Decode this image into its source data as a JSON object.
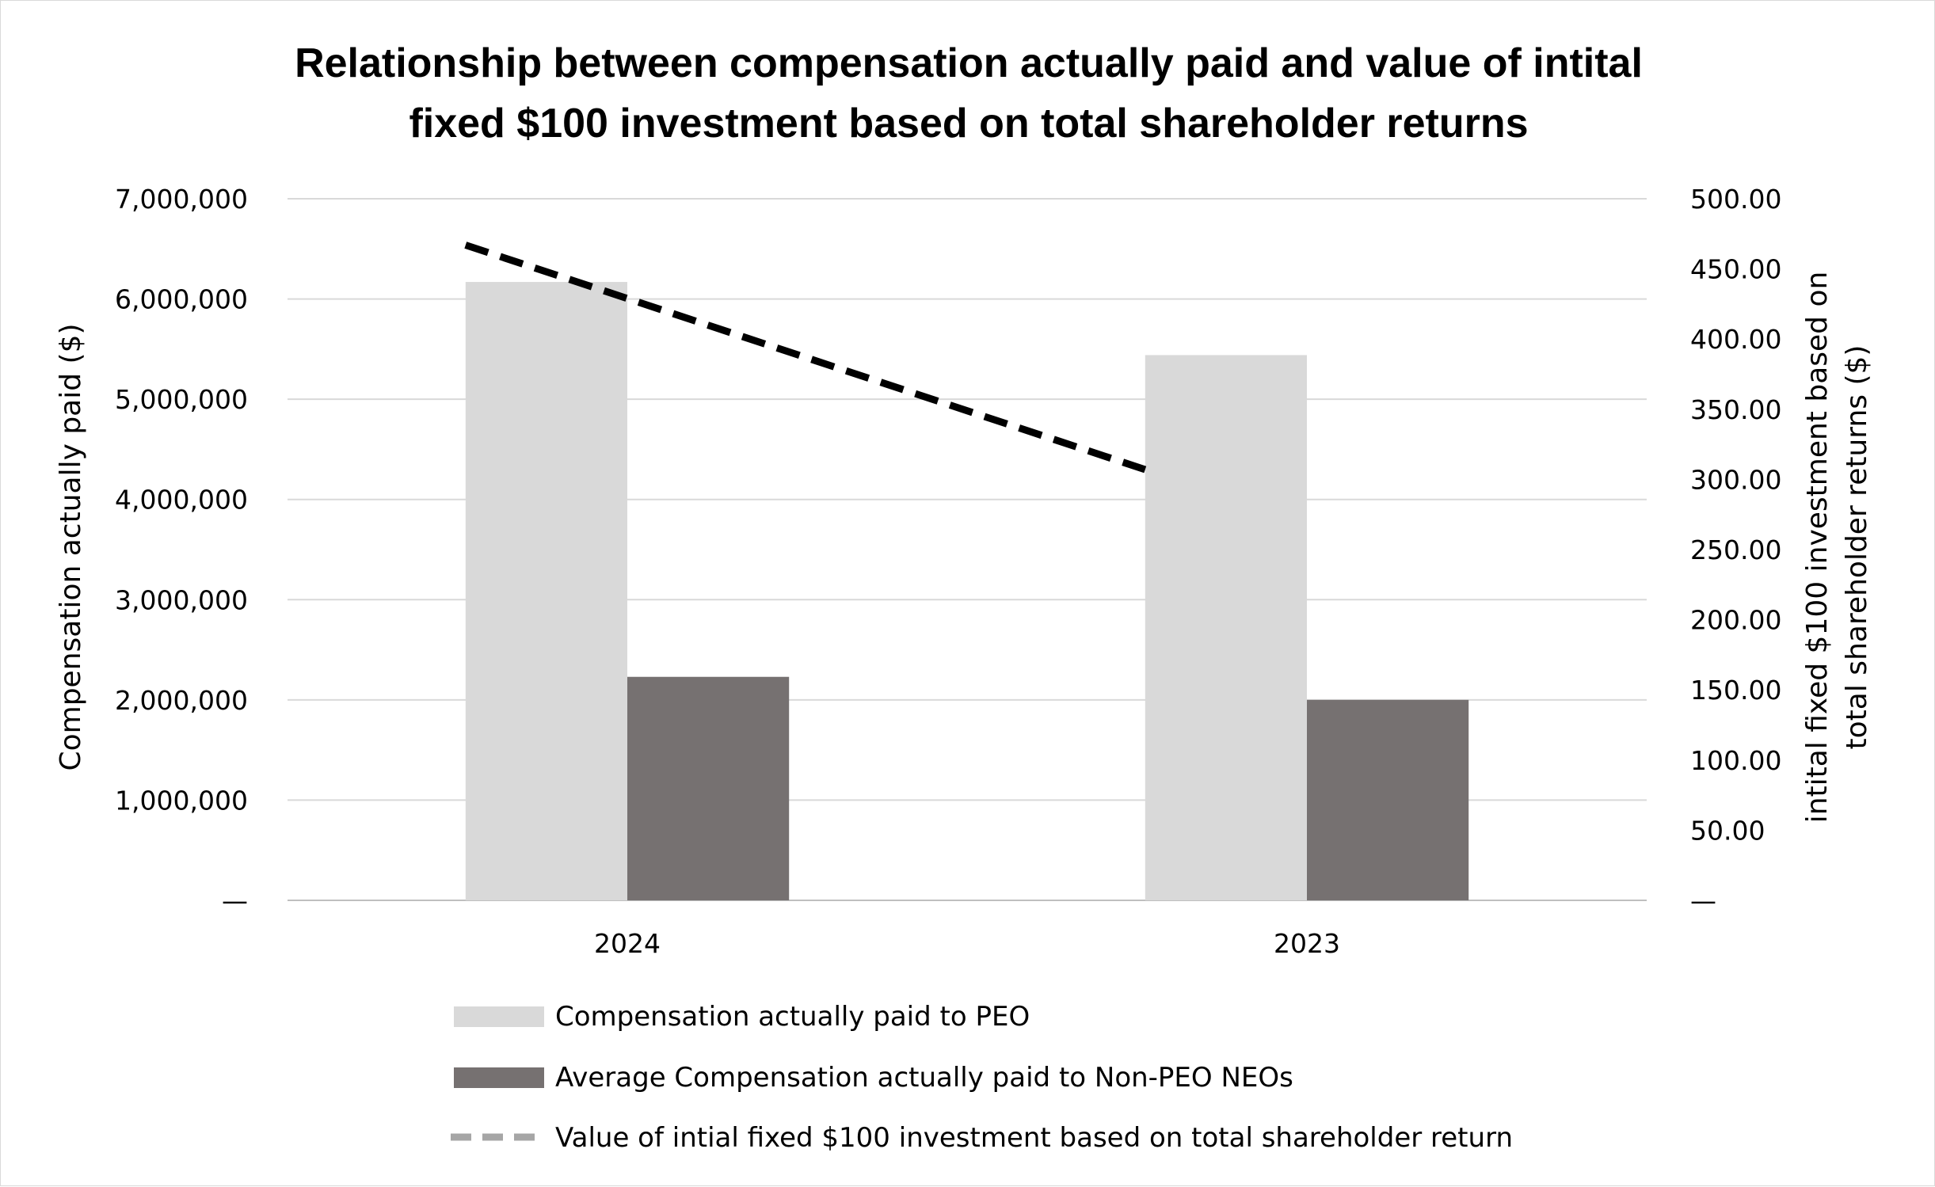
{
  "chart_data": {
    "type": "bar",
    "title_lines": [
      "Relationship between compensation actually paid and value of intital",
      "fixed $100 investment based on total shareholder returns"
    ],
    "categories": [
      "2024",
      "2023"
    ],
    "series": [
      {
        "name": "Compensation actually paid to PEO",
        "axis": "left",
        "color": "#d9d9d9",
        "values": [
          6170000,
          5440000
        ]
      },
      {
        "name": "Average Compensation actually paid to Non-PEO NEOs",
        "axis": "left",
        "color": "#767171",
        "values": [
          2230000,
          2000000
        ]
      },
      {
        "name": "Value of intial fixed $100 investment based on total shareholder return",
        "axis": "right",
        "type": "line",
        "style": "dashed",
        "color": "#000000",
        "legend_color": "#a6a6a6",
        "values": [
          467,
          307
        ]
      }
    ],
    "y_left": {
      "label": "Compensation actually paid ($)",
      "ylim": [
        0,
        7000000
      ],
      "ticks": [
        0,
        1000000,
        2000000,
        3000000,
        4000000,
        5000000,
        6000000,
        7000000
      ],
      "tick_labels": [
        "—",
        "1,000,000",
        "2,000,000",
        "3,000,000",
        "4,000,000",
        "5,000,000",
        "6,000,000",
        "7,000,000"
      ]
    },
    "y_right": {
      "label_lines": [
        "intital fixed $100 investment based on",
        "total shareholder returns ($)"
      ],
      "ylim": [
        0,
        500
      ],
      "ticks": [
        0,
        50,
        100,
        150,
        200,
        250,
        300,
        350,
        400,
        450,
        500
      ],
      "tick_labels": [
        "—",
        "50.00",
        "100.00",
        "150.00",
        "200.00",
        "250.00",
        "300.00",
        "350.00",
        "400.00",
        "450.00",
        "500.00"
      ]
    },
    "grid": true,
    "legend_position": "bottom"
  }
}
